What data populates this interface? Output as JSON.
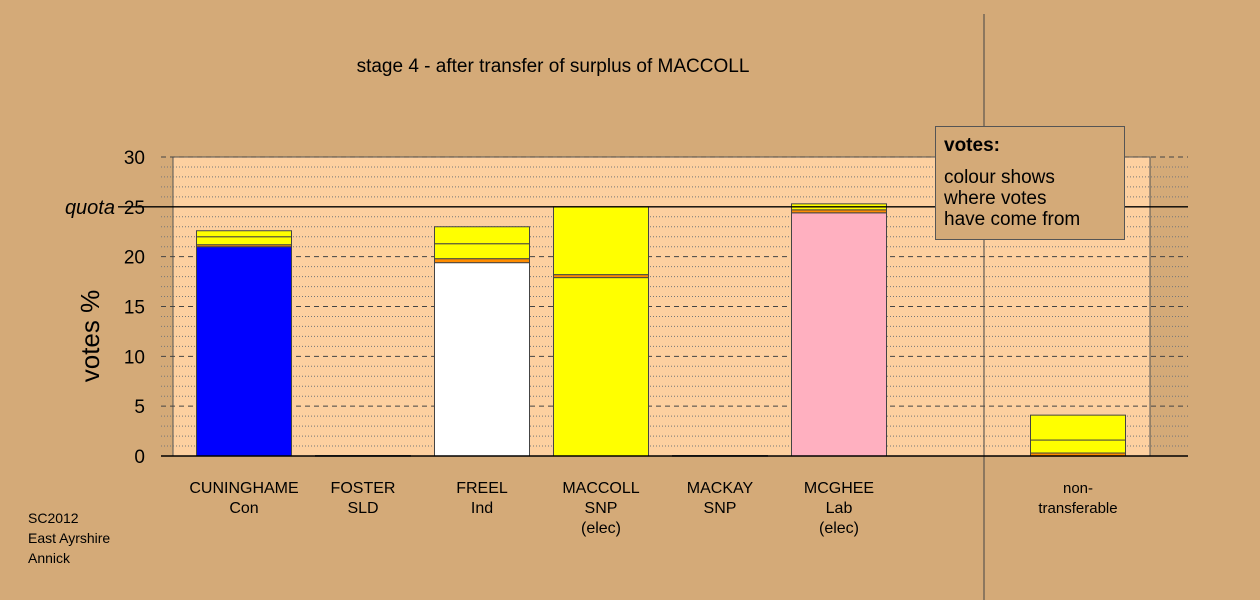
{
  "chart_data": {
    "type": "bar",
    "stacked": true,
    "title": "stage 4 - after transfer of surplus of MACCOLL",
    "ylabel": "votes %",
    "ylim": [
      0,
      30
    ],
    "yticks": [
      0,
      5,
      10,
      15,
      20,
      25,
      30
    ],
    "quota": {
      "label": "quota",
      "value": 25
    },
    "grid": true,
    "categories": [
      {
        "name": "CUNINGHAME",
        "party": "Con",
        "note": ""
      },
      {
        "name": "FOSTER",
        "party": "SLD",
        "note": ""
      },
      {
        "name": "FREEL",
        "party": "Ind",
        "note": ""
      },
      {
        "name": "MACCOLL",
        "party": "SNP",
        "note": "(elec)"
      },
      {
        "name": "MACKAY",
        "party": "SNP",
        "note": ""
      },
      {
        "name": "MCGHEE",
        "party": "Lab",
        "note": "(elec)"
      },
      {
        "name": "non-",
        "party": "transferable",
        "note": ""
      }
    ],
    "stacks": [
      [
        {
          "value": 21.0,
          "color": "#0000ff"
        },
        {
          "value": 0.2,
          "color": "#ff8c00"
        },
        {
          "value": 0.8,
          "color": "#ffff00"
        },
        {
          "value": 0.6,
          "color": "#ffff00"
        }
      ],
      [
        {
          "value": 0.05,
          "color": "#ffff00"
        }
      ],
      [
        {
          "value": 19.4,
          "color": "#ffffff"
        },
        {
          "value": 0.4,
          "color": "#ff8c00"
        },
        {
          "value": 1.5,
          "color": "#ffff00"
        },
        {
          "value": 1.7,
          "color": "#ffff00"
        }
      ],
      [
        {
          "value": 17.9,
          "color": "#ffff00"
        },
        {
          "value": 0.3,
          "color": "#ff8c00"
        },
        {
          "value": 6.8,
          "color": "#ffff00"
        }
      ],
      [
        {
          "value": 0.05,
          "color": "#ffff00"
        }
      ],
      [
        {
          "value": 24.4,
          "color": "#ffb0c0"
        },
        {
          "value": 0.3,
          "color": "#ff8c00"
        },
        {
          "value": 0.6,
          "color": "#ffff00"
        }
      ],
      [
        {
          "value": 0.3,
          "color": "#ff8c00"
        },
        {
          "value": 1.3,
          "color": "#ffff00"
        },
        {
          "value": 2.5,
          "color": "#ffff00"
        }
      ]
    ]
  },
  "legend": {
    "title": "votes:",
    "lines": [
      "colour shows",
      "where votes",
      "have come from"
    ]
  },
  "footnote": [
    "SC2012",
    "East Ayrshire",
    "Annick"
  ]
}
